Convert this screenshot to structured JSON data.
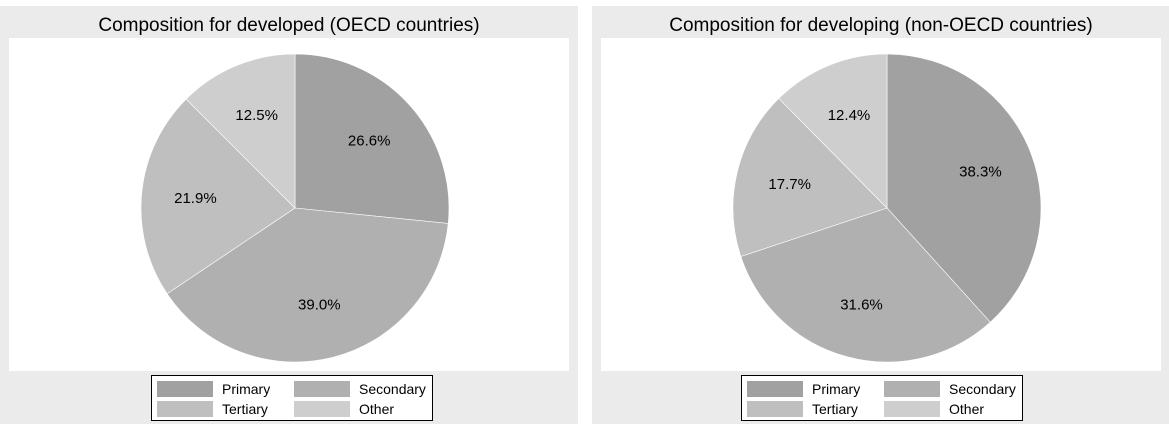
{
  "colors": {
    "Primary": "#a1a1a1",
    "Secondary": "#b0b0b0",
    "Tertiary": "#bfbfbf",
    "Other": "#cecece"
  },
  "chart_data": [
    {
      "type": "pie",
      "title": "Composition for developed (OECD countries)",
      "categories": [
        "Primary",
        "Secondary",
        "Tertiary",
        "Other"
      ],
      "values": [
        26.6,
        39.0,
        21.9,
        12.5
      ],
      "labels": [
        "26.6%",
        "39.0%",
        "21.9%",
        "12.5%"
      ],
      "start_angle": "12 o'clock, clockwise",
      "legend": "bottom"
    },
    {
      "type": "pie",
      "title": "Composition for developing (non-OECD countries)",
      "categories": [
        "Primary",
        "Secondary",
        "Tertiary",
        "Other"
      ],
      "values": [
        38.3,
        31.6,
        17.7,
        12.4
      ],
      "labels": [
        "38.3%",
        "31.6%",
        "17.7%",
        "12.4%"
      ],
      "start_angle": "12 o'clock, clockwise",
      "legend": "bottom"
    }
  ]
}
